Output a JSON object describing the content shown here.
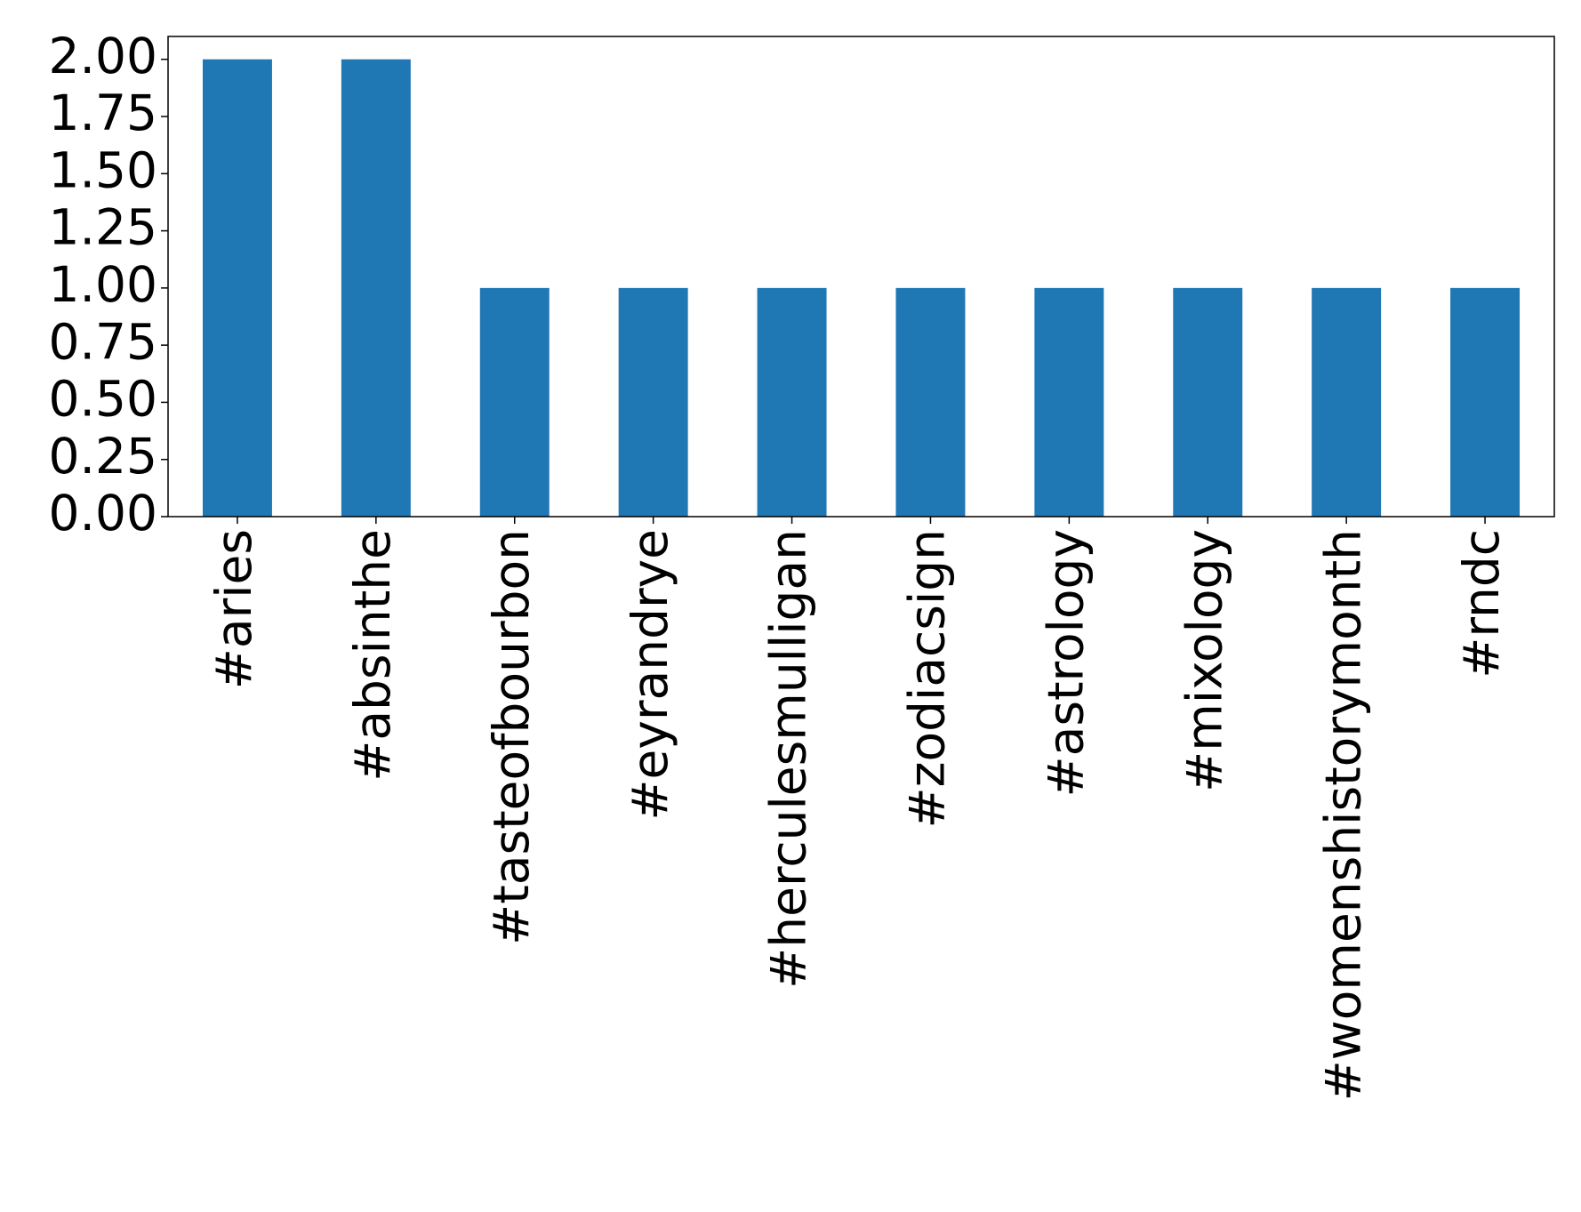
{
  "chart_data": {
    "type": "bar",
    "categories": [
      "#aries",
      "#absinthe",
      "#tasteofbourbon",
      "#eyrandrye",
      "#herculesmulligan",
      "#zodiacsign",
      "#astrology",
      "#mixology",
      "#womenshistorymonth",
      "#rndc"
    ],
    "values": [
      2,
      2,
      1,
      1,
      1,
      1,
      1,
      1,
      1,
      1
    ],
    "color": "#1f77b4",
    "ylim": [
      0,
      2.1
    ],
    "yticks": [
      {
        "value": 0,
        "label": "0.00"
      },
      {
        "value": 0.25,
        "label": "0.25"
      },
      {
        "value": 0.5,
        "label": "0.50"
      },
      {
        "value": 0.75,
        "label": "0.75"
      },
      {
        "value": 1,
        "label": "1.00"
      },
      {
        "value": 1.25,
        "label": "1.25"
      },
      {
        "value": 1.5,
        "label": "1.50"
      },
      {
        "value": 1.75,
        "label": "1.75"
      },
      {
        "value": 2,
        "label": "2.00"
      }
    ],
    "grid": false
  }
}
